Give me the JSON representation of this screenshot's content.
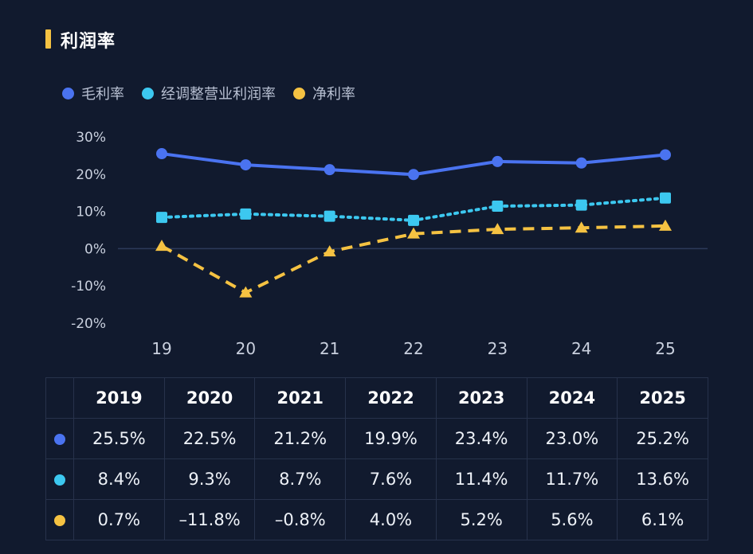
{
  "title": "利润率",
  "colors": {
    "gross": "#4a73f0",
    "adj_operating": "#3cc8f0",
    "net": "#f5c242"
  },
  "legend": [
    {
      "label": "毛利率",
      "color": "#4a73f0"
    },
    {
      "label": "经调整营业利润率",
      "color": "#3cc8f0"
    },
    {
      "label": "净利率",
      "color": "#f5c242"
    }
  ],
  "chart_data": {
    "type": "line",
    "x": [
      "19",
      "20",
      "21",
      "22",
      "23",
      "24",
      "25"
    ],
    "ylim": [
      -20,
      30
    ],
    "yticks": [
      "30%",
      "20%",
      "10%",
      "0%",
      "-10%",
      "-20%"
    ],
    "ytick_values": [
      30,
      20,
      10,
      0,
      -10,
      -20
    ],
    "legend_position": "top-left",
    "series": [
      {
        "name": "毛利率",
        "color": "#4a73f0",
        "style": "solid",
        "marker": "circle",
        "values": [
          25.5,
          22.5,
          21.2,
          19.9,
          23.4,
          23.0,
          25.2
        ]
      },
      {
        "name": "经调整营业利润率",
        "color": "#3cc8f0",
        "style": "dotted",
        "marker": "square",
        "values": [
          8.4,
          9.3,
          8.7,
          7.6,
          11.4,
          11.7,
          13.6
        ]
      },
      {
        "name": "净利率",
        "color": "#f5c242",
        "style": "dashed",
        "marker": "triangle",
        "values": [
          0.7,
          -11.8,
          -0.8,
          4.0,
          5.2,
          5.6,
          6.1
        ]
      }
    ]
  },
  "table": {
    "headers": [
      "2019",
      "2020",
      "2021",
      "2022",
      "2023",
      "2024",
      "2025"
    ],
    "rows": [
      {
        "color": "#4a73f0",
        "cells": [
          "25.5%",
          "22.5%",
          "21.2%",
          "19.9%",
          "23.4%",
          "23.0%",
          "25.2%"
        ]
      },
      {
        "color": "#3cc8f0",
        "cells": [
          "8.4%",
          "9.3%",
          "8.7%",
          "7.6%",
          "11.4%",
          "11.7%",
          "13.6%"
        ]
      },
      {
        "color": "#f5c242",
        "cells": [
          "0.7%",
          "–11.8%",
          "–0.8%",
          "4.0%",
          "5.2%",
          "5.6%",
          "6.1%"
        ]
      }
    ]
  }
}
